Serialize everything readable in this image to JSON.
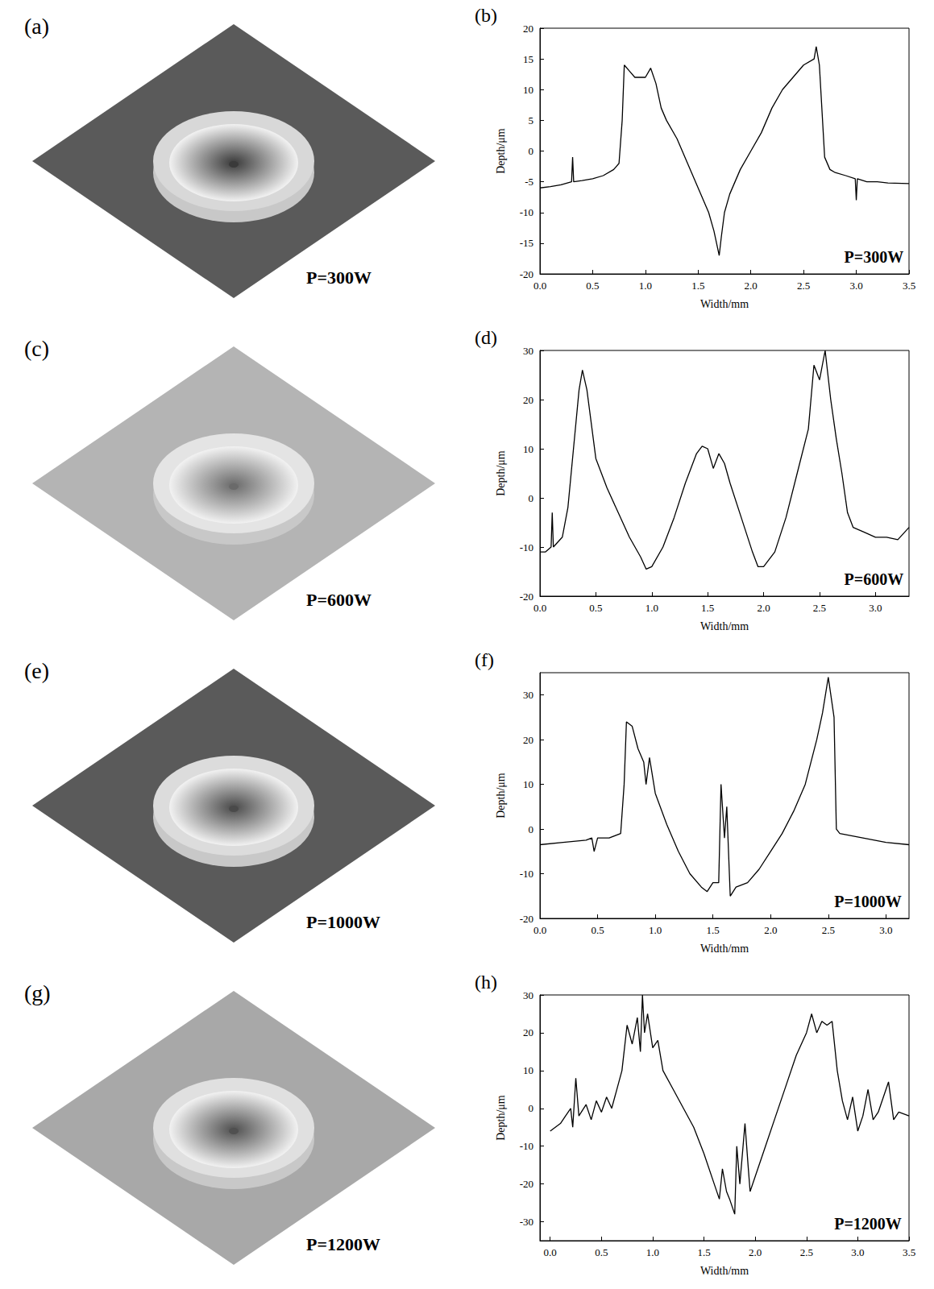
{
  "surface_panels": [
    {
      "panel": "(a)",
      "annotation": "P=300W"
    },
    {
      "panel": "(c)",
      "annotation": "P=600W"
    },
    {
      "panel": "(e)",
      "annotation": "P=1000W"
    },
    {
      "panel": "(g)",
      "annotation": "P=1200W"
    }
  ],
  "chart_data": [
    {
      "type": "line",
      "panel": "(b)",
      "annotation": "P=300W",
      "x_label": "Width/mm",
      "y_label": "Depth/μm",
      "color": "#000000",
      "grid": false,
      "xlim": [
        0,
        3.5
      ],
      "xticks": [
        {
          "value": 0,
          "label": "0.0"
        },
        0.5,
        {
          "value": 1,
          "label": "1.0"
        },
        1.5,
        {
          "value": 2,
          "label": "2.0"
        },
        2.5,
        {
          "value": 3,
          "label": "3.0"
        },
        3.5
      ],
      "ylim": [
        -20,
        20
      ],
      "yticks": [
        -20,
        -15,
        -10,
        -5,
        0,
        5,
        10,
        15,
        20
      ],
      "x": [
        0.0,
        0.1,
        0.2,
        0.3,
        0.31,
        0.32,
        0.4,
        0.5,
        0.6,
        0.7,
        0.75,
        0.78,
        0.8,
        0.85,
        0.9,
        1.0,
        1.05,
        1.1,
        1.15,
        1.2,
        1.3,
        1.4,
        1.5,
        1.6,
        1.65,
        1.7,
        1.72,
        1.75,
        1.8,
        1.9,
        2.0,
        2.1,
        2.2,
        2.3,
        2.4,
        2.5,
        2.6,
        2.62,
        2.65,
        2.7,
        2.75,
        2.8,
        2.9,
        2.99,
        3.0,
        3.01,
        3.1,
        3.2,
        3.3,
        3.5
      ],
      "values": [
        -6,
        -5.8,
        -5.5,
        -5,
        -1,
        -5,
        -4.8,
        -4.5,
        -4,
        -3,
        -2,
        5,
        14,
        13,
        12,
        12,
        13.5,
        11,
        7,
        5,
        2,
        -2,
        -6,
        -10,
        -13,
        -17,
        -14,
        -10,
        -7,
        -3,
        0,
        3,
        7,
        10,
        12,
        14,
        15,
        17,
        14,
        -1,
        -3,
        -3.5,
        -4,
        -4.5,
        -8,
        -4.5,
        -5,
        -5,
        -5.2,
        -5.3
      ]
    },
    {
      "type": "line",
      "panel": "(d)",
      "annotation": "P=600W",
      "x_label": "Width/mm",
      "y_label": "Depth/μm",
      "color": "#000000",
      "grid": false,
      "xlim": [
        0,
        3.3
      ],
      "xticks": [
        {
          "value": 0,
          "label": "0.0"
        },
        0.5,
        {
          "value": 1,
          "label": "1.0"
        },
        1.5,
        {
          "value": 2,
          "label": "2.0"
        },
        2.5,
        {
          "value": 3,
          "label": "3.0"
        }
      ],
      "ylim": [
        -20,
        30
      ],
      "yticks": [
        -20,
        -10,
        0,
        10,
        20,
        30
      ],
      "x": [
        0.0,
        0.05,
        0.1,
        0.11,
        0.12,
        0.2,
        0.25,
        0.3,
        0.35,
        0.38,
        0.42,
        0.5,
        0.6,
        0.7,
        0.8,
        0.9,
        0.95,
        1.0,
        1.1,
        1.2,
        1.3,
        1.4,
        1.45,
        1.5,
        1.55,
        1.6,
        1.65,
        1.7,
        1.8,
        1.9,
        1.95,
        2.0,
        2.1,
        2.2,
        2.3,
        2.4,
        2.45,
        2.5,
        2.55,
        2.6,
        2.65,
        2.7,
        2.75,
        2.8,
        2.9,
        3.0,
        3.1,
        3.2,
        3.3
      ],
      "values": [
        -11,
        -11,
        -10,
        -3,
        -10,
        -8,
        -2,
        10,
        22,
        26,
        22,
        8,
        2,
        -3,
        -8,
        -12,
        -14.5,
        -14,
        -10,
        -4,
        3,
        9,
        10.5,
        10,
        6,
        9,
        7,
        3,
        -4,
        -11,
        -14,
        -14,
        -11,
        -4,
        5,
        14,
        27,
        24,
        30,
        20,
        12,
        5,
        -3,
        -6,
        -7,
        -8,
        -8,
        -8.5,
        -6
      ]
    },
    {
      "type": "line",
      "panel": "(f)",
      "annotation": "P=1000W",
      "x_label": "Width/mm",
      "y_label": "Depth/μm",
      "color": "#000000",
      "grid": false,
      "xlim": [
        0,
        3.2
      ],
      "xticks": [
        {
          "value": 0,
          "label": "0.0"
        },
        0.5,
        {
          "value": 1,
          "label": "1.0"
        },
        1.5,
        {
          "value": 2,
          "label": "2.0"
        },
        2.5,
        {
          "value": 3,
          "label": "3.0"
        }
      ],
      "ylim": [
        -20,
        35
      ],
      "yticks": [
        -20,
        -10,
        0,
        10,
        20,
        30
      ],
      "x": [
        0.0,
        0.2,
        0.4,
        0.45,
        0.47,
        0.5,
        0.6,
        0.7,
        0.73,
        0.75,
        0.8,
        0.85,
        0.9,
        0.92,
        0.95,
        1.0,
        1.1,
        1.2,
        1.3,
        1.4,
        1.45,
        1.5,
        1.55,
        1.57,
        1.6,
        1.62,
        1.65,
        1.7,
        1.8,
        1.9,
        2.0,
        2.1,
        2.2,
        2.3,
        2.4,
        2.45,
        2.5,
        2.55,
        2.57,
        2.6,
        2.8,
        3.0,
        3.2
      ],
      "values": [
        -3.5,
        -3,
        -2.5,
        -2,
        -5,
        -2,
        -2,
        -1,
        10,
        24,
        23,
        18,
        15,
        10,
        16,
        8,
        1,
        -5,
        -10,
        -13,
        -14,
        -12,
        -12,
        10,
        -2,
        5,
        -15,
        -13,
        -12,
        -9,
        -5,
        -1,
        4,
        10,
        20,
        26,
        34,
        25,
        0,
        -1,
        -2,
        -3,
        -3.5
      ]
    },
    {
      "type": "line",
      "panel": "(h)",
      "annotation": "P=1200W",
      "x_label": "Width/mm",
      "y_label": "Depth/μm",
      "color": "#000000",
      "grid": false,
      "xlim": [
        -0.1,
        3.5
      ],
      "xticks": [
        {
          "value": 0,
          "label": "0.0"
        },
        0.5,
        {
          "value": 1,
          "label": "1.0"
        },
        1.5,
        {
          "value": 2,
          "label": "2.0"
        },
        2.5,
        {
          "value": 3,
          "label": "3.0"
        },
        3.5
      ],
      "ylim": [
        -35,
        30
      ],
      "yticks": [
        -30,
        -20,
        -10,
        0,
        10,
        20,
        30
      ],
      "x": [
        0.0,
        0.1,
        0.15,
        0.2,
        0.22,
        0.25,
        0.28,
        0.35,
        0.4,
        0.45,
        0.5,
        0.55,
        0.6,
        0.65,
        0.7,
        0.75,
        0.8,
        0.85,
        0.88,
        0.9,
        0.92,
        0.95,
        1.0,
        1.05,
        1.1,
        1.2,
        1.3,
        1.4,
        1.5,
        1.6,
        1.65,
        1.68,
        1.72,
        1.75,
        1.8,
        1.82,
        1.85,
        1.9,
        1.93,
        1.95,
        2.0,
        2.1,
        2.2,
        2.3,
        2.4,
        2.5,
        2.55,
        2.6,
        2.65,
        2.7,
        2.75,
        2.8,
        2.85,
        2.9,
        2.95,
        3.0,
        3.05,
        3.1,
        3.15,
        3.2,
        3.3,
        3.35,
        3.4,
        3.5
      ],
      "values": [
        -6,
        -4,
        -2,
        0,
        -5,
        8,
        -2,
        1,
        -3,
        2,
        -1,
        3,
        0,
        5,
        10,
        22,
        17,
        24,
        15,
        30,
        20,
        25,
        16,
        18,
        10,
        5,
        0,
        -5,
        -12,
        -20,
        -24,
        -16,
        -22,
        -24,
        -28,
        -10,
        -20,
        -4,
        -15,
        -22,
        -18,
        -10,
        -2,
        6,
        14,
        20,
        25,
        20,
        23,
        22,
        23,
        10,
        2,
        -3,
        3,
        -6,
        -2,
        5,
        -3,
        -1,
        7,
        -3,
        -1,
        -2
      ]
    }
  ]
}
